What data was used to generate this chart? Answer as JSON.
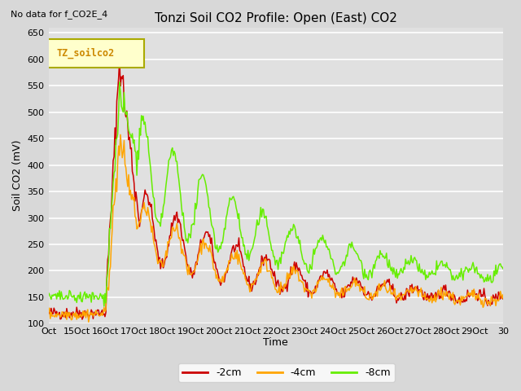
{
  "title": "Tonzi Soil CO2 Profile: Open (East) CO2",
  "no_data_text": "No data for f_CO2E_4",
  "legend_box_label": "TZ_soilco2",
  "ylabel": "Soil CO2 (mV)",
  "xlabel": "Time",
  "ylim": [
    100,
    660
  ],
  "bg_color": "#e0e0e0",
  "grid_color": "#ffffff",
  "line_colors": {
    "minus2cm": "#cc0000",
    "minus4cm": "#ffa500",
    "minus8cm": "#66ee00"
  },
  "line_labels": [
    "-2cm",
    "-4cm",
    "-8cm"
  ],
  "xtick_labels": [
    "Oct",
    "15Oct",
    "16Oct",
    "17Oct",
    "18Oct",
    "19Oct",
    "20Oct",
    "21Oct",
    "22Oct",
    "23Oct",
    "24Oct",
    "25Oct",
    "26Oct",
    "27Oct",
    "28Oct",
    "29Oct",
    "30"
  ],
  "ytick_vals": [
    100,
    150,
    200,
    250,
    300,
    350,
    400,
    450,
    500,
    550,
    600,
    650
  ],
  "n_points": 500
}
